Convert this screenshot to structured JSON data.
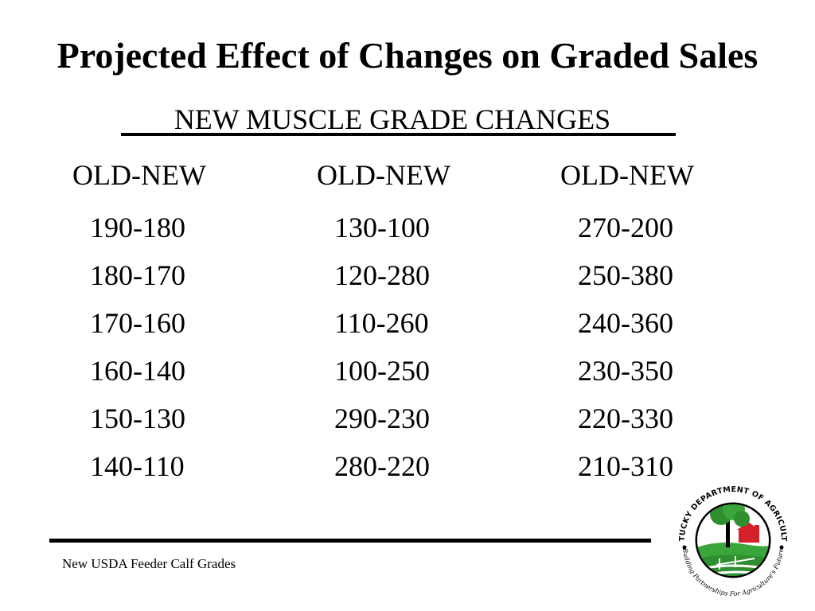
{
  "slide": {
    "title": "Projected Effect of Changes on Graded Sales",
    "subtitle": "NEW MUSCLE GRADE CHANGES  ",
    "columns": [
      {
        "header": "OLD-NEW",
        "values": [
          "190-180",
          "180-170",
          "170-160",
          "160-140",
          "150-130",
          "140-110"
        ]
      },
      {
        "header": "OLD-NEW",
        "values": [
          "130-100",
          "120-280",
          "110-260",
          "100-250",
          "290-230",
          "280-220"
        ]
      },
      {
        "header": "OLD-NEW",
        "values": [
          "270-200",
          "250-380",
          "240-360",
          "230-350",
          "220-330",
          "210-310"
        ]
      }
    ],
    "footer": "New USDA Feeder Calf Grades"
  },
  "logo": {
    "icon": "kentucky-department-of-agriculture-seal-icon",
    "top_text": "KENTUCKY DEPARTMENT OF AGRICULTURE",
    "bottom_text": "Building Partnerships For Agriculture's Future",
    "colors": {
      "green": "#3aa53a",
      "red": "#d3202a",
      "black": "#000000"
    }
  }
}
